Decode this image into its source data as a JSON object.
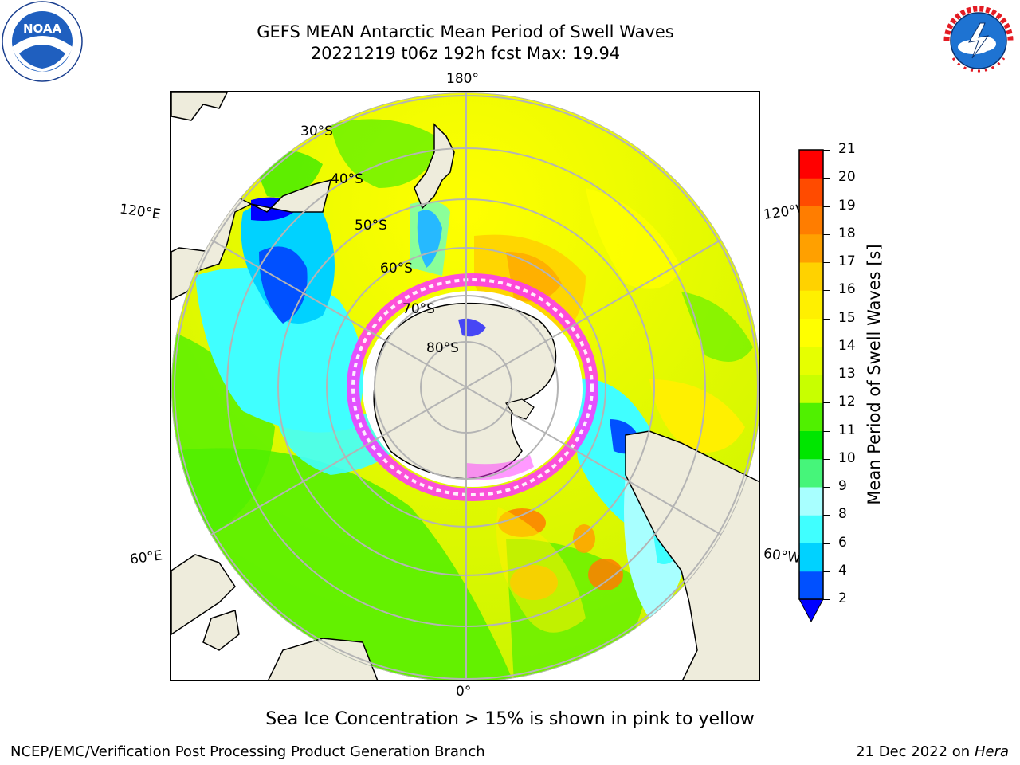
{
  "title": {
    "line1": "GEFS MEAN Antarctic Mean Period of Swell Waves",
    "line2": "20221219 t06z 192h fcst   Max: 19.94"
  },
  "logos": {
    "left": "NOAA",
    "left_ring_text": "NATIONAL OCEANIC AND ATMOSPHERIC ADMINISTRATION · U.S. DEPARTMENT OF COMMERCE",
    "right_ring_text": "NATIONAL WEATHER SERVICE"
  },
  "map": {
    "projection": "south-polar-stereographic",
    "longitude_labels": {
      "top": "180°",
      "left_upper": "120°E",
      "right_upper": "120°W",
      "left_lower": "60°E",
      "right_lower": "60°W",
      "bottom": "0°"
    },
    "latitude_labels": [
      "30°S",
      "40°S",
      "50°S",
      "60°S",
      "70°S",
      "80°S"
    ],
    "colors": {
      "land": "#eeecdc",
      "ocean_base": "#ccf500",
      "grid": "#b4b4b4",
      "sea_ice_edge": "#ff33ff"
    }
  },
  "colorbar": {
    "label": "Mean Period of Swell Waves [s]",
    "ticks": [
      "2",
      "4",
      "6",
      "8",
      "9",
      "10",
      "11",
      "12",
      "13",
      "14",
      "15",
      "16",
      "17",
      "18",
      "19",
      "20",
      "21"
    ],
    "colors": [
      "#0050ff",
      "#00d2ff",
      "#40ffff",
      "#a8ffff",
      "#46f57a",
      "#00e600",
      "#50f000",
      "#c8ff00",
      "#e6ff00",
      "#ffff00",
      "#fff000",
      "#ffd200",
      "#ffa000",
      "#ff7d00",
      "#ff4b00",
      "#ff0000"
    ],
    "under_color": "#0000ff"
  },
  "chart_data": {
    "type": "heatmap",
    "title": "GEFS MEAN Antarctic Mean Period of Swell Waves",
    "subtitle": "20221219 t06z 192h fcst   Max: 19.94",
    "variable": "Mean Period of Swell Waves [s]",
    "max": 19.94,
    "color_scale_ticks": [
      2,
      4,
      6,
      8,
      9,
      10,
      11,
      12,
      13,
      14,
      15,
      16,
      17,
      18,
      19,
      20,
      21
    ]
  },
  "caption": "Sea Ice Concentration > 15% is shown in pink to yellow",
  "footer": {
    "left": "NCEP/EMC/Verification Post Processing Product Generation Branch",
    "right_date": "21 Dec 2022 on",
    "right_host": "Hera"
  }
}
